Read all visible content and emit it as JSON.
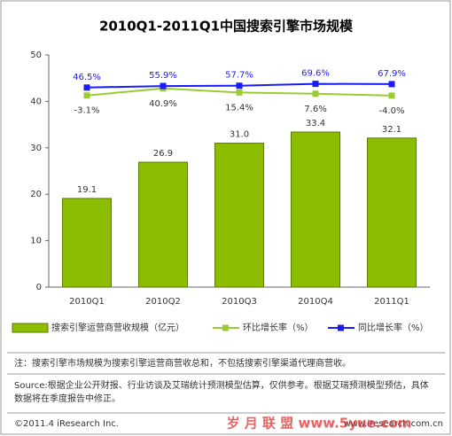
{
  "chart_data": {
    "type": "bar",
    "title": "2010Q1-2011Q1中国搜索引擎市场规模",
    "categories": [
      "2010Q1",
      "2010Q2",
      "2010Q3",
      "2010Q4",
      "2011Q1"
    ],
    "ylim": [
      0,
      50
    ],
    "yticks": [
      0,
      10,
      20,
      30,
      40,
      50
    ],
    "y2lim": [
      -1200,
      250
    ],
    "series": [
      {
        "name": "搜索引擎运营商营收规模（亿元）",
        "type": "bar",
        "color": "#8cbd00",
        "values": [
          19.1,
          26.9,
          31,
          33.4,
          32.1
        ],
        "value_labels": [
          "19.1",
          "26.9",
          "31.0",
          "33.4",
          "32.1"
        ]
      },
      {
        "name": "环比增长率（%）",
        "type": "line",
        "axis": "y2",
        "color": "#99cc33",
        "label_side": "below",
        "values": [
          -3.1,
          40.9,
          15.4,
          7.6,
          -4.0
        ],
        "value_labels": [
          "-3.1%",
          "40.9%",
          "15.4%",
          "7.6%",
          "-4.0%"
        ]
      },
      {
        "name": "同比增长率（%）",
        "type": "line",
        "axis": "y2",
        "color": "#1a1aff",
        "label_side": "above",
        "values": [
          46.5,
          55.9,
          57.7,
          69.6,
          67.9
        ],
        "value_labels": [
          "46.5%",
          "55.9%",
          "57.7%",
          "69.6%",
          "67.9%"
        ]
      }
    ]
  },
  "footer": {
    "note": "注：搜索引擎市场规模为搜索引擎运营商营收总和，不包括搜索引擎渠道代理商营收。",
    "source": "Source:根据企业公开财报、行业访谈及艾瑞统计预测模型估算，仅供参考。根据艾瑞预测模型预估，具体数据将在季度报告中修正。",
    "copyright": "©2011.4 iResearch Inc.",
    "website": "www.iresearch.com.cn",
    "watermark": "岁 月 联 盟 www.5yue.com"
  }
}
